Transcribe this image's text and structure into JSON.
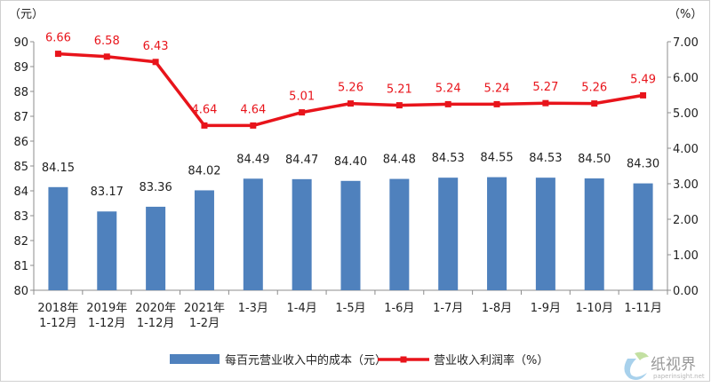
{
  "chart_data": {
    "type": "bar",
    "categories": [
      [
        "2018年",
        "1-12月"
      ],
      [
        "2019年",
        "1-12月"
      ],
      [
        "2020年",
        "1-12月"
      ],
      [
        "2021年",
        "1-2月"
      ],
      [
        "1-3月"
      ],
      [
        "1-4月"
      ],
      [
        "1-5月"
      ],
      [
        "1-6月"
      ],
      [
        "1-7月"
      ],
      [
        "1-8月"
      ],
      [
        "1-9月"
      ],
      [
        "1-10月"
      ],
      [
        "1-11月"
      ]
    ],
    "series": [
      {
        "name": "每百元营业收入中的成本（元）",
        "type": "bar",
        "axis": "left",
        "color": "#4f81bd",
        "values": [
          84.15,
          83.17,
          83.36,
          84.02,
          84.49,
          84.47,
          84.4,
          84.48,
          84.53,
          84.55,
          84.53,
          84.5,
          84.3
        ],
        "labels": [
          "84.15",
          "83.17",
          "83.36",
          "84.02",
          "84.49",
          "84.47",
          "84.40",
          "84.48",
          "84.53",
          "84.55",
          "84.53",
          "84.50",
          "84.30"
        ]
      },
      {
        "name": "营业收入利润率（%）",
        "type": "line",
        "axis": "right",
        "color": "#e8141b",
        "values": [
          6.66,
          6.58,
          6.43,
          4.64,
          4.64,
          5.01,
          5.26,
          5.21,
          5.24,
          5.24,
          5.27,
          5.26,
          5.49
        ],
        "labels": [
          "6.66",
          "6.58",
          "6.43",
          "4.64",
          "4.64",
          "5.01",
          "5.26",
          "5.21",
          "5.24",
          "5.24",
          "5.27",
          "5.26",
          "5.49"
        ]
      }
    ],
    "y_left": {
      "unit_label": "（元）",
      "range": [
        80,
        90
      ],
      "ticks": [
        "80",
        "81",
        "82",
        "83",
        "84",
        "85",
        "86",
        "87",
        "88",
        "89",
        "90"
      ]
    },
    "y_right": {
      "unit_label": "（%）",
      "range": [
        0,
        7
      ],
      "ticks": [
        "0.00",
        "1.00",
        "2.00",
        "3.00",
        "4.00",
        "5.00",
        "6.00",
        "7.00"
      ]
    },
    "grid": false,
    "legend_position": "bottom"
  },
  "watermark": {
    "text": "纸视界",
    "url": "paperinsight.net"
  }
}
